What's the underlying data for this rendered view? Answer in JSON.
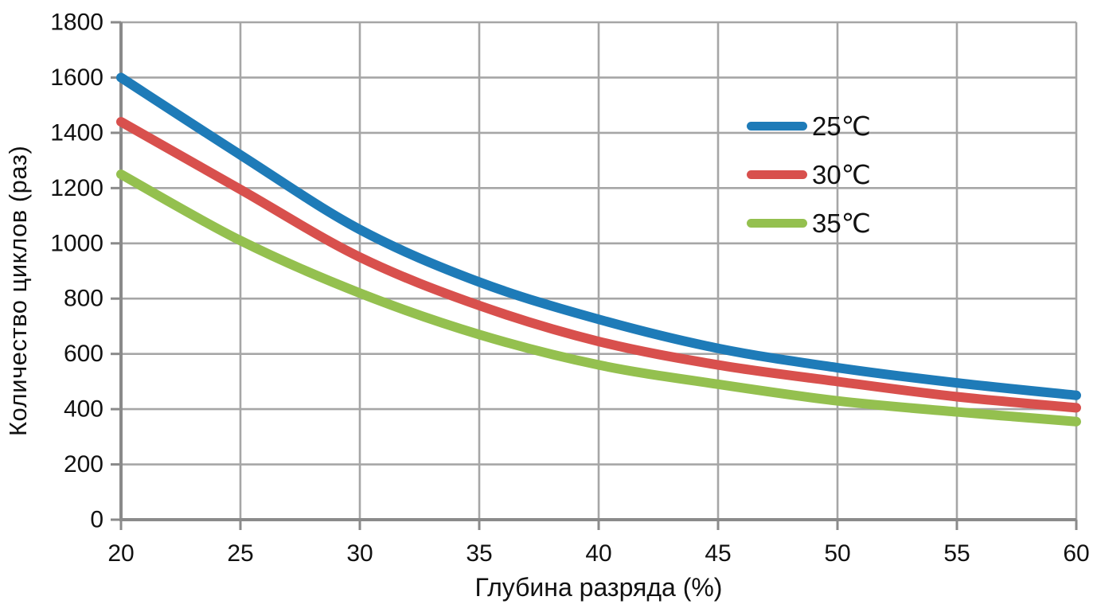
{
  "chart_data": {
    "type": "line",
    "title": "",
    "xlabel": "Глубина разряда (%)",
    "ylabel": "Количество циклов (раз)",
    "x": [
      20,
      25,
      30,
      35,
      40,
      45,
      50,
      55,
      60
    ],
    "series": [
      {
        "name": "25℃",
        "color": "#1E7BB8",
        "values": [
          1600,
          1320,
          1050,
          860,
          725,
          620,
          550,
          495,
          450
        ]
      },
      {
        "name": "30℃",
        "color": "#D8504D",
        "values": [
          1440,
          1195,
          950,
          775,
          645,
          560,
          500,
          445,
          405
        ]
      },
      {
        "name": "35℃",
        "color": "#94C04F",
        "values": [
          1250,
          1010,
          820,
          670,
          560,
          490,
          430,
          390,
          355
        ]
      }
    ],
    "xlim": [
      20,
      60
    ],
    "ylim": [
      0,
      1800
    ],
    "x_tick_step": 5,
    "y_tick_step": 200,
    "grid": true,
    "legend_position": "inside-upper-right",
    "grid_color": "#A6A6A6",
    "axis_color": "#8A8A8A",
    "tick_label_color": "#111111",
    "line_width": 12
  }
}
